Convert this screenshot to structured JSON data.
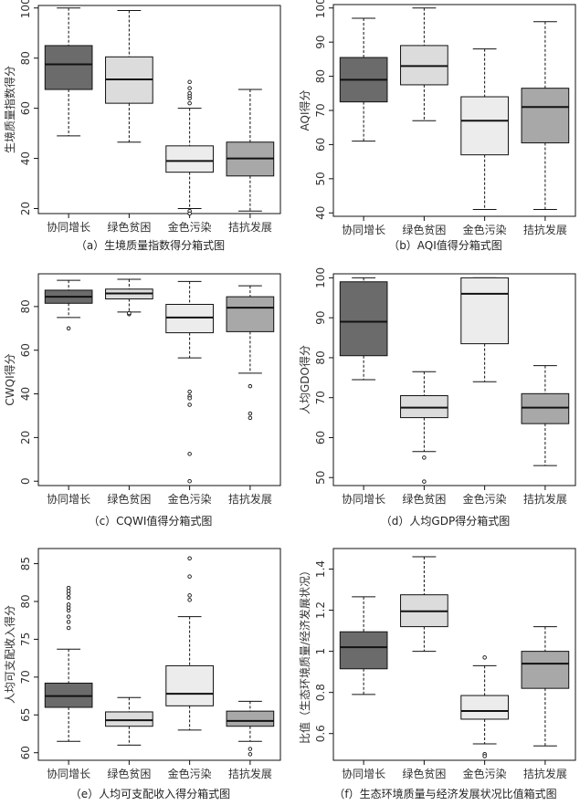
{
  "colors": {
    "dark": "#6b6b6b",
    "mid": "#a8a8a8",
    "light": "#dcdcdc",
    "lighter": "#ececec",
    "stroke": "#111111"
  },
  "chart_data": [
    {
      "type": "box",
      "caption": "（a）生境质量指数得分箱式图",
      "ylabel": "生境质量指数得分",
      "ylim": [
        18,
        101
      ],
      "yticks": [
        20,
        40,
        60,
        80,
        100
      ],
      "categories": [
        "协同增长",
        "绿色贫困",
        "金色污染",
        "拮抗发展"
      ],
      "boxes": [
        {
          "min": 49,
          "q1": 67.5,
          "median": 77.5,
          "q3": 85,
          "max": 100,
          "outliers": [],
          "fill": "dark"
        },
        {
          "min": 46.5,
          "q1": 62,
          "median": 71.5,
          "q3": 80.5,
          "max": 99,
          "outliers": [],
          "fill": "light"
        },
        {
          "min": 20,
          "q1": 34.5,
          "median": 39,
          "q3": 45,
          "max": 60,
          "outliers": [
            19,
            18,
            62,
            64,
            65,
            66,
            68,
            70.5
          ],
          "fill": "lighter"
        },
        {
          "min": 19,
          "q1": 33,
          "median": 40,
          "q3": 46.5,
          "max": 67.5,
          "outliers": [],
          "fill": "mid"
        }
      ]
    },
    {
      "type": "box",
      "caption": "（b）AQI值得分箱式图",
      "ylabel": "AQI得分",
      "ylim": [
        39,
        101
      ],
      "yticks": [
        40,
        50,
        60,
        70,
        80,
        90,
        100
      ],
      "categories": [
        "协同增长",
        "绿色贫困",
        "金色污染",
        "拮抗发展"
      ],
      "boxes": [
        {
          "min": 61,
          "q1": 72.5,
          "median": 79,
          "q3": 85.5,
          "max": 97,
          "outliers": [],
          "fill": "dark"
        },
        {
          "min": 67,
          "q1": 77.5,
          "median": 83,
          "q3": 89,
          "max": 100,
          "outliers": [],
          "fill": "light"
        },
        {
          "min": 41,
          "q1": 57,
          "median": 67,
          "q3": 74,
          "max": 88,
          "outliers": [],
          "fill": "lighter"
        },
        {
          "min": 41,
          "q1": 60.5,
          "median": 71,
          "q3": 76.5,
          "max": 96,
          "outliers": [],
          "fill": "mid"
        }
      ]
    },
    {
      "type": "box",
      "caption": "（c）CQWI值得分箱式图",
      "ylabel": "CWQI得分",
      "ylim": [
        -2,
        95
      ],
      "yticks": [
        0,
        20,
        40,
        60,
        80
      ],
      "categories": [
        "协同增长",
        "绿色贫困",
        "金色污染",
        "拮抗发展"
      ],
      "boxes": [
        {
          "min": 75,
          "q1": 81.5,
          "median": 84.5,
          "q3": 87.5,
          "max": 92,
          "outliers": [
            70
          ],
          "fill": "dark"
        },
        {
          "min": 77.5,
          "q1": 83.5,
          "median": 86,
          "q3": 88,
          "max": 92.5,
          "outliers": [
            76.5,
            77
          ],
          "fill": "light"
        },
        {
          "min": 56.5,
          "q1": 68,
          "median": 75,
          "q3": 81,
          "max": 91.5,
          "outliers": [
            41,
            39,
            38,
            35,
            12.5,
            0
          ],
          "fill": "lighter"
        },
        {
          "min": 49.5,
          "q1": 68.5,
          "median": 79.5,
          "q3": 84.5,
          "max": 89.5,
          "outliers": [
            43.5,
            31,
            29
          ],
          "fill": "mid"
        }
      ]
    },
    {
      "type": "box",
      "caption": "（d）人均GDP得分箱式图",
      "ylabel": "人均GDO得分",
      "ylim": [
        48,
        101
      ],
      "yticks": [
        50,
        60,
        70,
        80,
        90,
        100
      ],
      "categories": [
        "协同增长",
        "绿色贫困",
        "金色污染",
        "拮抗发展"
      ],
      "boxes": [
        {
          "min": 74.5,
          "q1": 80.5,
          "median": 89,
          "q3": 99,
          "max": 100,
          "outliers": [],
          "fill": "dark"
        },
        {
          "min": 56.5,
          "q1": 65,
          "median": 67.5,
          "q3": 70.5,
          "max": 76.5,
          "outliers": [
            55,
            49
          ],
          "fill": "light"
        },
        {
          "min": 74,
          "q1": 83.5,
          "median": 96,
          "q3": 100,
          "max": 100,
          "outliers": [],
          "fill": "lighter"
        },
        {
          "min": 53,
          "q1": 63.5,
          "median": 67.5,
          "q3": 71,
          "max": 78,
          "outliers": [],
          "fill": "mid"
        }
      ]
    },
    {
      "type": "box",
      "caption": "（e）人均可支配收入得分箱式图",
      "ylabel": "人均可支配收入得分",
      "ylim": [
        59,
        87
      ],
      "yticks": [
        60,
        65,
        70,
        75,
        80,
        85
      ],
      "categories": [
        "协同增长",
        "绿色贫困",
        "金色污染",
        "拮抗发展"
      ],
      "boxes": [
        {
          "min": 61.5,
          "q1": 66,
          "median": 67.5,
          "q3": 69.2,
          "max": 73.7,
          "outliers": [
            76.5,
            77.3,
            78,
            78.8,
            79.2,
            79.6,
            80.5,
            81,
            81.4,
            81.8
          ],
          "fill": "dark"
        },
        {
          "min": 61,
          "q1": 63.5,
          "median": 64.3,
          "q3": 65.4,
          "max": 67.3,
          "outliers": [],
          "fill": "light"
        },
        {
          "min": 63,
          "q1": 66.2,
          "median": 67.8,
          "q3": 71.5,
          "max": 78,
          "outliers": [
            80.2,
            80.8,
            83.3,
            85.7
          ],
          "fill": "lighter"
        },
        {
          "min": 61.5,
          "q1": 63.5,
          "median": 64.2,
          "q3": 65.5,
          "max": 66.8,
          "outliers": [
            60.5,
            59.8
          ],
          "fill": "mid"
        }
      ]
    },
    {
      "type": "box",
      "caption": "（f）生态环境质量与经济发展状况比值箱式图",
      "ylabel": "比值（生态环境质量/经济发展状况）",
      "ylim": [
        0.47,
        1.5
      ],
      "yticks": [
        0.6,
        0.8,
        1.0,
        1.2,
        1.4
      ],
      "categories": [
        "协同增长",
        "绿色贫困",
        "金色污染",
        "拮抗发展"
      ],
      "boxes": [
        {
          "min": 0.79,
          "q1": 0.915,
          "median": 1.02,
          "q3": 1.095,
          "max": 1.265,
          "outliers": [],
          "fill": "dark"
        },
        {
          "min": 1.0,
          "q1": 1.12,
          "median": 1.195,
          "q3": 1.275,
          "max": 1.46,
          "outliers": [],
          "fill": "light"
        },
        {
          "min": 0.55,
          "q1": 0.67,
          "median": 0.71,
          "q3": 0.785,
          "max": 0.93,
          "outliers": [
            0.97,
            0.5,
            0.49
          ],
          "fill": "lighter"
        },
        {
          "min": 0.54,
          "q1": 0.82,
          "median": 0.94,
          "q3": 1.0,
          "max": 1.12,
          "outliers": [],
          "fill": "mid"
        }
      ]
    }
  ]
}
